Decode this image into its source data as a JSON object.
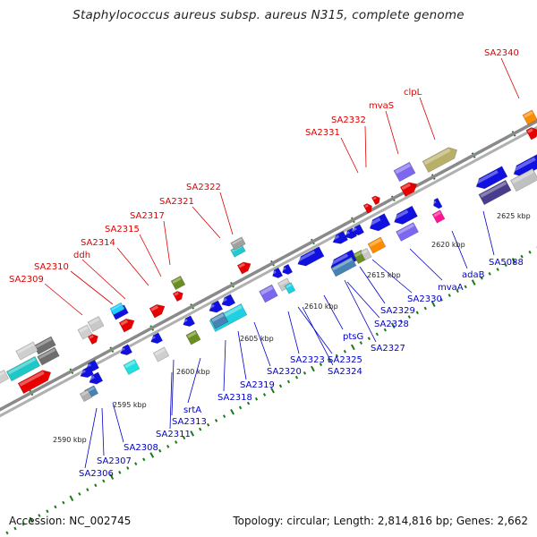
{
  "title": "Staphylococcus aureus subsp. aureus N315, complete genome",
  "footer": {
    "accession": "Accession: NC_002745",
    "summary": "Topology: circular; Length: 2,814,816 bp; Genes: 2,662"
  },
  "colors": {
    "backbone": "#8a8a8a",
    "tick": "#1a7a1a",
    "forward_label": "#dd0000",
    "reverse_label": "#0000cc"
  },
  "scale_labels": [
    "2590 kbp",
    "2595 kbp",
    "2600 kbp",
    "2605 kbp",
    "2610 kbp",
    "2615 kbp",
    "2620 kbp",
    "2625 kbp"
  ],
  "forward_labels": [
    "SA2309",
    "SA2310",
    "ddh",
    "SA2314",
    "SA2315",
    "SA2317",
    "SA2321",
    "SA2322",
    "SA2331",
    "SA2332",
    "mvaS",
    "clpL",
    "SA2340"
  ],
  "reverse_labels": [
    "SA2306",
    "SA2307",
    "SA2308",
    "SA2311",
    "SA2313",
    "srtA",
    "SA2318",
    "SA2319",
    "SA2320",
    "SA2323",
    "SA2325",
    "SA2324",
    "ptsG",
    "SA2327",
    "SA2328",
    "SA2329",
    "SA2330",
    "mvaA",
    "adaB",
    "SA5088"
  ]
}
